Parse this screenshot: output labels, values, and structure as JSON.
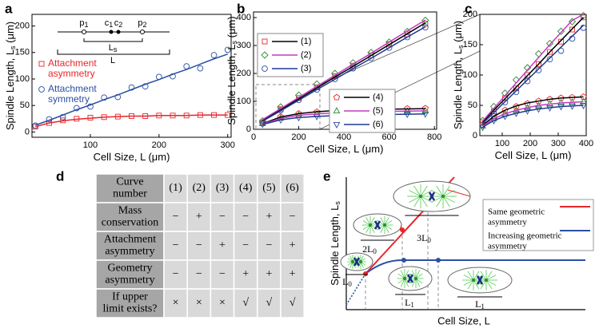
{
  "chart_data": [
    {
      "type": "scatter",
      "panel": "a",
      "xlabel": [
        "Cell Size, L (μm)"
      ],
      "ylabel": [
        "Spindle Length, L",
        "s",
        " (μm)"
      ],
      "xlim": [
        15,
        305
      ],
      "ylim": [
        -10,
        222
      ],
      "xticks": [
        100,
        200,
        300
      ],
      "yticks": [
        0,
        50,
        100,
        150,
        200
      ],
      "inset_labels": [
        [
          "p",
          "1"
        ],
        [
          "c",
          "1"
        ],
        [
          "c",
          "2"
        ],
        [
          "p",
          "2"
        ],
        [
          "L",
          "s"
        ],
        [
          "L"
        ]
      ],
      "series": [
        {
          "name": [
            "Attachment",
            "asymmetry"
          ],
          "color": "#e8262a",
          "line_color": "#e8262a",
          "marker": "square",
          "x": [
            20,
            40,
            60,
            80,
            100,
            120,
            140,
            160,
            180,
            200,
            220,
            240,
            260,
            280,
            300
          ],
          "values": [
            10,
            17,
            22,
            25,
            27,
            28,
            29,
            30,
            30,
            31,
            31,
            31,
            32,
            32,
            32
          ],
          "fit": [
            10,
            17,
            21,
            24,
            26,
            28,
            29,
            30,
            30,
            31,
            31,
            31,
            32,
            32,
            32
          ]
        },
        {
          "name": [
            "Attachment",
            "symmetry"
          ],
          "color": "#2b4fa3",
          "line_color": "#2b4fa3",
          "marker": "circle",
          "x": [
            20,
            40,
            60,
            80,
            100,
            120,
            140,
            160,
            180,
            200,
            220,
            240,
            260,
            280,
            300
          ],
          "values": [
            12,
            24,
            28,
            45,
            48,
            65,
            66,
            84,
            86,
            104,
            105,
            124,
            120,
            145,
            155
          ],
          "fit": [
            13,
            22,
            32,
            42,
            51,
            61,
            70,
            80,
            90,
            99,
            109,
            118,
            128,
            138,
            147
          ]
        }
      ]
    },
    {
      "type": "scatter",
      "panel": "b",
      "xlabel": [
        "Cell Size, L (μm)"
      ],
      "ylabel": [
        "Spindle Length, L",
        "s",
        " (μm)"
      ],
      "xlim": [
        0,
        810
      ],
      "ylim": [
        0,
        420
      ],
      "xticks": [
        0,
        200,
        400,
        600,
        800
      ],
      "yticks": [
        0,
        100,
        200,
        300,
        400
      ],
      "series": [
        {
          "name": [
            "(1)"
          ],
          "color": "#e8262a",
          "line_color": "#000000",
          "marker": "square",
          "x": [
            40,
            120,
            200,
            280,
            360,
            440,
            520,
            600,
            680,
            760
          ],
          "values": [
            25,
            72,
            112,
            150,
            190,
            228,
            265,
            305,
            340,
            378
          ],
          "fit": [
            31,
            70,
            109,
            148,
            187,
            225,
            264,
            303,
            342,
            381
          ]
        },
        {
          "name": [
            "(2)"
          ],
          "color": "#2e8b2e",
          "line_color": "#c13bc1",
          "marker": "diamond",
          "x": [
            40,
            120,
            200,
            280,
            360,
            440,
            520,
            600,
            680,
            760
          ],
          "values": [
            30,
            80,
            122,
            162,
            200,
            238,
            275,
            312,
            350,
            390
          ],
          "fit": [
            35,
            74,
            114,
            154,
            193,
            233,
            272,
            312,
            352,
            391
          ]
        },
        {
          "name": [
            "(3)"
          ],
          "color": "#2b4fa3",
          "line_color": "#1f3a8f",
          "marker": "circle",
          "x": [
            40,
            120,
            200,
            280,
            360,
            440,
            520,
            600,
            680,
            760
          ],
          "values": [
            22,
            68,
            105,
            142,
            180,
            218,
            255,
            292,
            330,
            365
          ],
          "fit": [
            29,
            66,
            104,
            142,
            179,
            217,
            254,
            292,
            330,
            367
          ]
        },
        {
          "name": [
            "(4)"
          ],
          "color": "#e8262a",
          "line_color": "#000000",
          "marker": "pentagon",
          "x": [
            40,
            120,
            200,
            280,
            360,
            440,
            520,
            600,
            680,
            760
          ],
          "values": [
            22,
            45,
            56,
            62,
            66,
            69,
            71,
            73,
            74,
            75
          ],
          "fit": [
            20,
            44,
            56,
            63,
            67,
            69,
            71,
            72,
            73,
            74
          ]
        },
        {
          "name": [
            "(5)"
          ],
          "color": "#2e8b2e",
          "line_color": "#c13bc1",
          "marker": "triangle",
          "x": [
            40,
            120,
            200,
            280,
            360,
            440,
            520,
            600,
            680,
            760
          ],
          "values": [
            20,
            40,
            50,
            55,
            58,
            61,
            63,
            64,
            65,
            66
          ],
          "fit": [
            19,
            39,
            50,
            55,
            59,
            61,
            62,
            64,
            65,
            66
          ]
        },
        {
          "name": [
            "(6)"
          ],
          "color": "#2b4fa3",
          "line_color": "#1f3a8f",
          "marker": "triangle-down",
          "x": [
            40,
            120,
            200,
            280,
            360,
            440,
            520,
            600,
            680,
            760
          ],
          "values": [
            18,
            34,
            42,
            46,
            49,
            51,
            52,
            53,
            54,
            55
          ],
          "fit": [
            17,
            34,
            42,
            46,
            49,
            51,
            52,
            53,
            54,
            55
          ]
        }
      ]
    },
    {
      "type": "scatter",
      "panel": "c",
      "xlabel": [
        "Cell Size, L (μm)"
      ],
      "ylabel": [
        "Spindle Length, L",
        "s",
        " (μm)"
      ],
      "xlim": [
        20,
        400
      ],
      "ylim": [
        0,
        200
      ],
      "xticks": [
        100,
        200,
        300,
        400
      ],
      "yticks": [
        0,
        50,
        100,
        150,
        200
      ],
      "series": [
        {
          "color": "#e8262a",
          "line_color": "#000000",
          "marker": "square",
          "x": [
            30,
            70,
            110,
            150,
            190,
            230,
            270,
            310,
            350,
            390
          ],
          "values": [
            22,
            40,
            62,
            78,
            100,
            118,
            138,
            155,
            175,
            195
          ],
          "fit": [
            22,
            42,
            61,
            80,
            99,
            118,
            138,
            157,
            176,
            195
          ]
        },
        {
          "color": "#2e8b2e",
          "line_color": "#c13bc1",
          "marker": "diamond",
          "x": [
            30,
            70,
            110,
            150,
            190,
            230,
            270,
            310,
            350,
            390
          ],
          "values": [
            25,
            48,
            70,
            92,
            112,
            135,
            152,
            172,
            188,
            198
          ],
          "fit": [
            24,
            45,
            66,
            87,
            108,
            129,
            150,
            170,
            190,
            200
          ]
        },
        {
          "color": "#2b4fa3",
          "line_color": "#1f3a8f",
          "marker": "circle",
          "x": [
            30,
            70,
            110,
            150,
            190,
            230,
            270,
            310,
            350,
            390
          ],
          "values": [
            18,
            36,
            55,
            72,
            90,
            108,
            126,
            140,
            160,
            178
          ],
          "fit": [
            20,
            38,
            56,
            74,
            92,
            110,
            128,
            146,
            164,
            182
          ]
        },
        {
          "color": "#e8262a",
          "line_color": "#000000",
          "marker": "pentagon",
          "x": [
            30,
            70,
            110,
            150,
            190,
            230,
            270,
            310,
            350,
            390
          ],
          "values": [
            18,
            32,
            42,
            48,
            53,
            57,
            60,
            62,
            63,
            64
          ],
          "fit": [
            17,
            32,
            42,
            49,
            54,
            57,
            60,
            62,
            63,
            64
          ]
        },
        {
          "color": "#2e8b2e",
          "line_color": "#c13bc1",
          "marker": "triangle",
          "x": [
            30,
            70,
            110,
            150,
            190,
            230,
            270,
            310,
            350,
            390
          ],
          "values": [
            16,
            28,
            36,
            42,
            46,
            49,
            52,
            54,
            55,
            56
          ],
          "fit": [
            16,
            28,
            36,
            42,
            46,
            50,
            52,
            54,
            55,
            56
          ]
        },
        {
          "color": "#2b4fa3",
          "line_color": "#1f3a8f",
          "marker": "triangle-down",
          "x": [
            30,
            70,
            110,
            150,
            190,
            230,
            270,
            310,
            350,
            390
          ],
          "values": [
            14,
            25,
            32,
            37,
            41,
            44,
            46,
            48,
            49,
            50
          ],
          "fit": [
            14,
            25,
            32,
            37,
            41,
            44,
            46,
            48,
            49,
            50
          ]
        }
      ]
    }
  ],
  "table": {
    "panel": "d",
    "rows": [
      [
        [
          "Curve",
          "number"
        ],
        "(1)",
        "(2)",
        "(3)",
        "(4)",
        "(5)",
        "(6)"
      ],
      [
        [
          "Mass",
          "conservation"
        ],
        "−",
        "+",
        "−",
        "−",
        "+",
        "−"
      ],
      [
        [
          "Attachment",
          "asymmetry"
        ],
        "−",
        "−",
        "+",
        "−",
        "−",
        "+"
      ],
      [
        [
          "Geometry",
          "asymmetry"
        ],
        "−",
        "−",
        "−",
        "+",
        "+",
        "+"
      ],
      [
        [
          "If upper",
          "limit exists?"
        ],
        "×",
        "×",
        "×",
        "√",
        "√",
        "√"
      ]
    ]
  },
  "diagram": {
    "panel": "e",
    "ylabel": [
      "Spindle Length, L",
      "s"
    ],
    "xlabel": "Cell Size, L",
    "labels": [
      [
        "3L",
        "0"
      ],
      [
        "2L",
        "0"
      ],
      [
        "L",
        "0"
      ],
      [
        "L",
        "1"
      ],
      [
        "L",
        "1"
      ]
    ],
    "legend": [
      [
        "Same geometric",
        "asymmetry"
      ],
      [
        "Increasing geometric",
        "asymmetry"
      ]
    ]
  }
}
